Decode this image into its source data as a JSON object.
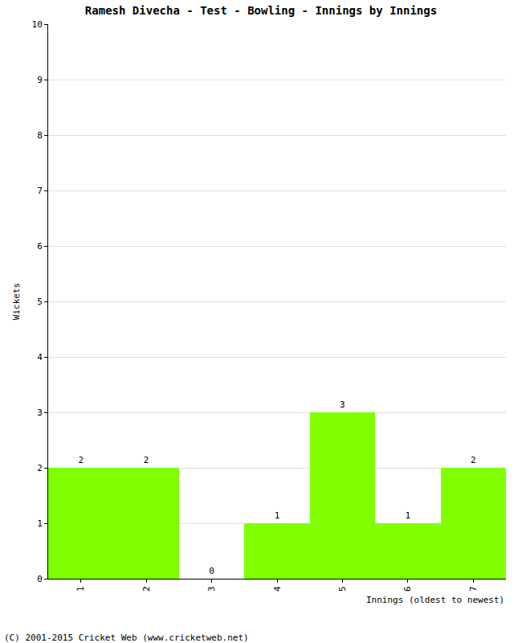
{
  "chart_data": {
    "type": "bar",
    "title": "Ramesh Divecha - Test - Bowling - Innings by Innings",
    "x_label": "Innings (oldest to newest)",
    "y_label": "Wickets",
    "categories": [
      "1",
      "2",
      "3",
      "4",
      "5",
      "6",
      "7"
    ],
    "values": [
      2,
      2,
      0,
      1,
      3,
      1,
      2
    ],
    "color": "#7fff00",
    "ylim": [
      0,
      10
    ],
    "yticks": [
      0,
      1,
      2,
      3,
      4,
      5,
      6,
      7,
      8,
      9,
      10
    ],
    "grid": true,
    "data_labels": true,
    "annotations": [
      "(C) 2001-2015 Cricket Web (www.cricketweb.net)"
    ]
  }
}
